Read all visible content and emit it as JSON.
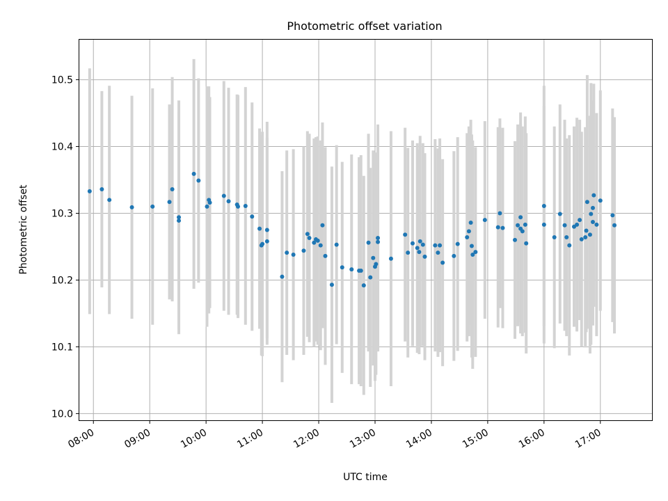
{
  "chart_data": {
    "type": "scatter",
    "title": "Photometric offset variation",
    "xlabel": "UTC time",
    "ylabel": "Photometric offset",
    "xlim": [
      "07:45",
      "17:55"
    ],
    "ylim": [
      9.99,
      10.56
    ],
    "x_ticks": [
      "08:00",
      "09:00",
      "10:00",
      "11:00",
      "12:00",
      "13:00",
      "14:00",
      "15:00",
      "16:00",
      "17:00"
    ],
    "y_ticks": [
      "10.0",
      "10.1",
      "10.2",
      "10.3",
      "10.4",
      "10.5"
    ],
    "grid": true,
    "colors": {
      "point": "#1f77b4",
      "errorbar": "#d3d3d3",
      "grid": "#b0b0b0"
    },
    "series": [
      {
        "x": [
          "07:56",
          "08:09",
          "08:17",
          "08:41",
          "09:03",
          "09:21",
          "09:24",
          "09:31",
          "09:31",
          "09:47",
          "09:52",
          "10:01",
          "10:03",
          "10:04",
          "10:19",
          "10:24",
          "10:33",
          "10:34",
          "10:42",
          "10:49",
          "10:57",
          "10:59",
          "11:00",
          "11:05",
          "11:05",
          "11:21",
          "11:26",
          "11:33",
          "11:44",
          "11:48",
          "11:50",
          "11:55",
          "11:57",
          "11:59",
          "12:02",
          "12:04",
          "12:07",
          "12:14",
          "12:19",
          "12:25",
          "12:35",
          "12:43",
          "12:45",
          "12:48",
          "12:53",
          "12:55",
          "12:58",
          "13:00",
          "13:01",
          "13:03",
          "13:03",
          "13:17",
          "13:32",
          "13:35",
          "13:40",
          "13:45",
          "13:47",
          "13:48",
          "13:51",
          "13:53",
          "14:04",
          "14:07",
          "14:09",
          "14:12",
          "14:24",
          "14:28",
          "14:38",
          "14:40",
          "14:42",
          "14:43",
          "14:44",
          "14:47",
          "14:57",
          "15:11",
          "15:13",
          "15:16",
          "15:29",
          "15:32",
          "15:35",
          "15:35",
          "15:37",
          "15:40",
          "15:41",
          "16:00",
          "16:00",
          "16:11",
          "16:17",
          "16:22",
          "16:24",
          "16:27",
          "16:32",
          "16:35",
          "16:38",
          "16:40",
          "16:44",
          "16:45",
          "16:46",
          "16:49",
          "16:50",
          "16:52",
          "16:52",
          "16:53",
          "16:56",
          "17:00",
          "17:13",
          "17:15"
        ],
        "y": [
          10.333,
          10.336,
          10.32,
          10.309,
          10.31,
          10.317,
          10.336,
          10.294,
          10.289,
          10.359,
          10.349,
          10.31,
          10.32,
          10.316,
          10.326,
          10.318,
          10.313,
          10.31,
          10.311,
          10.295,
          10.277,
          10.252,
          10.254,
          10.275,
          10.258,
          10.205,
          10.241,
          10.238,
          10.244,
          10.269,
          10.263,
          10.256,
          10.261,
          10.259,
          10.252,
          10.282,
          10.236,
          10.193,
          10.253,
          10.219,
          10.216,
          10.214,
          10.214,
          10.192,
          10.256,
          10.204,
          10.233,
          10.22,
          10.224,
          10.257,
          10.263,
          10.232,
          10.268,
          10.241,
          10.255,
          10.248,
          10.242,
          10.258,
          10.253,
          10.235,
          10.252,
          10.241,
          10.252,
          10.226,
          10.236,
          10.254,
          10.264,
          10.273,
          10.286,
          10.251,
          10.238,
          10.242,
          10.29,
          10.279,
          10.3,
          10.278,
          10.26,
          10.282,
          10.294,
          10.277,
          10.273,
          10.283,
          10.255,
          10.311,
          10.283,
          10.264,
          10.299,
          10.282,
          10.264,
          10.252,
          10.28,
          10.283,
          10.29,
          10.261,
          10.264,
          10.274,
          10.317,
          10.268,
          10.299,
          10.308,
          10.287,
          10.327,
          10.283,
          10.319,
          10.297,
          10.282
        ],
        "yerr": [
          0.184,
          0.147,
          0.171,
          0.167,
          0.177,
          0.146,
          0.168,
          0.175,
          0.162,
          0.172,
          0.153,
          0.18,
          0.17,
          0.158,
          0.172,
          0.17,
          0.165,
          0.167,
          0.178,
          0.171,
          0.15,
          0.165,
          0.168,
          0.162,
          0.155,
          0.158,
          0.153,
          0.158,
          0.156,
          0.154,
          0.156,
          0.156,
          0.153,
          0.156,
          0.157,
          0.154,
          0.163,
          0.177,
          0.149,
          0.158,
          0.172,
          0.17,
          0.173,
          0.164,
          0.163,
          0.164,
          0.161,
          0.171,
          0.166,
          0.163,
          0.17,
          0.191,
          0.16,
          0.157,
          0.154,
          0.157,
          0.153,
          0.158,
          0.152,
          0.155,
          0.159,
          0.156,
          0.16,
          0.155,
          0.157,
          0.16,
          0.156,
          0.157,
          0.154,
          0.167,
          0.171,
          0.157,
          0.148,
          0.15,
          0.142,
          0.15,
          0.148,
          0.151,
          0.157,
          0.157,
          0.157,
          0.162,
          0.165,
          0.18,
          0.178,
          0.166,
          0.164,
          0.158,
          0.148,
          0.165,
          0.15,
          0.16,
          0.15,
          0.161,
          0.165,
          0.152,
          0.19,
          0.178,
          0.196,
          0.161,
          0.155,
          0.167,
          0.167,
          0.165,
          0.16,
          0.162
        ]
      }
    ]
  }
}
